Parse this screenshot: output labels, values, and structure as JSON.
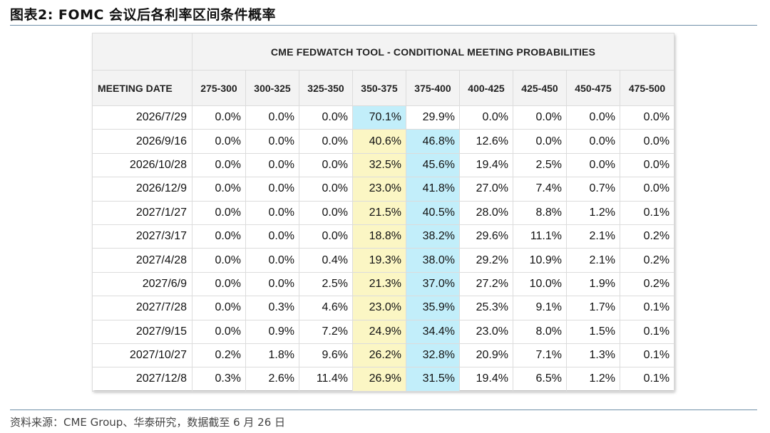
{
  "figure_title": "图表2:  FOMC 会议后各利率区间条件概率",
  "source_note": "资料来源：CME Group、华泰研究，数据截至 6 月 26 日",
  "table": {
    "title": "CME FEDWATCH TOOL - CONDITIONAL MEETING PROBABILITIES",
    "date_header": "MEETING DATE",
    "columns": [
      "275-300",
      "300-325",
      "325-350",
      "350-375",
      "375-400",
      "400-425",
      "425-450",
      "450-475",
      "475-500"
    ],
    "highlight_colors": {
      "yellow": "#fbf6c4",
      "cyan": "#c2eefa"
    },
    "rows": [
      {
        "date": "2026/7/29",
        "values": [
          "0.0%",
          "0.0%",
          "0.0%",
          "70.1%",
          "29.9%",
          "0.0%",
          "0.0%",
          "0.0%",
          "0.0%"
        ],
        "highlight": [
          null,
          null,
          null,
          "cyan",
          null,
          null,
          null,
          null,
          null
        ]
      },
      {
        "date": "2026/9/16",
        "values": [
          "0.0%",
          "0.0%",
          "0.0%",
          "40.6%",
          "46.8%",
          "12.6%",
          "0.0%",
          "0.0%",
          "0.0%"
        ],
        "highlight": [
          null,
          null,
          null,
          "yellow",
          "cyan",
          null,
          null,
          null,
          null
        ]
      },
      {
        "date": "2026/10/28",
        "values": [
          "0.0%",
          "0.0%",
          "0.0%",
          "32.5%",
          "45.6%",
          "19.4%",
          "2.5%",
          "0.0%",
          "0.0%"
        ],
        "highlight": [
          null,
          null,
          null,
          "yellow",
          "cyan",
          null,
          null,
          null,
          null
        ]
      },
      {
        "date": "2026/12/9",
        "values": [
          "0.0%",
          "0.0%",
          "0.0%",
          "23.0%",
          "41.8%",
          "27.0%",
          "7.4%",
          "0.7%",
          "0.0%"
        ],
        "highlight": [
          null,
          null,
          null,
          "yellow",
          "cyan",
          null,
          null,
          null,
          null
        ]
      },
      {
        "date": "2027/1/27",
        "values": [
          "0.0%",
          "0.0%",
          "0.0%",
          "21.5%",
          "40.5%",
          "28.0%",
          "8.8%",
          "1.2%",
          "0.1%"
        ],
        "highlight": [
          null,
          null,
          null,
          "yellow",
          "cyan",
          null,
          null,
          null,
          null
        ]
      },
      {
        "date": "2027/3/17",
        "values": [
          "0.0%",
          "0.0%",
          "0.0%",
          "18.8%",
          "38.2%",
          "29.6%",
          "11.1%",
          "2.1%",
          "0.2%"
        ],
        "highlight": [
          null,
          null,
          null,
          "yellow",
          "cyan",
          null,
          null,
          null,
          null
        ]
      },
      {
        "date": "2027/4/28",
        "values": [
          "0.0%",
          "0.0%",
          "0.4%",
          "19.3%",
          "38.0%",
          "29.2%",
          "10.9%",
          "2.1%",
          "0.2%"
        ],
        "highlight": [
          null,
          null,
          null,
          "yellow",
          "cyan",
          null,
          null,
          null,
          null
        ]
      },
      {
        "date": "2027/6/9",
        "values": [
          "0.0%",
          "0.0%",
          "2.5%",
          "21.3%",
          "37.0%",
          "27.2%",
          "10.0%",
          "1.9%",
          "0.2%"
        ],
        "highlight": [
          null,
          null,
          null,
          "yellow",
          "cyan",
          null,
          null,
          null,
          null
        ]
      },
      {
        "date": "2027/7/28",
        "values": [
          "0.0%",
          "0.3%",
          "4.6%",
          "23.0%",
          "35.9%",
          "25.3%",
          "9.1%",
          "1.7%",
          "0.1%"
        ],
        "highlight": [
          null,
          null,
          null,
          "yellow",
          "cyan",
          null,
          null,
          null,
          null
        ]
      },
      {
        "date": "2027/9/15",
        "values": [
          "0.0%",
          "0.9%",
          "7.2%",
          "24.9%",
          "34.4%",
          "23.0%",
          "8.0%",
          "1.5%",
          "0.1%"
        ],
        "highlight": [
          null,
          null,
          null,
          "yellow",
          "cyan",
          null,
          null,
          null,
          null
        ]
      },
      {
        "date": "2027/10/27",
        "values": [
          "0.2%",
          "1.8%",
          "9.6%",
          "26.2%",
          "32.8%",
          "20.9%",
          "7.1%",
          "1.3%",
          "0.1%"
        ],
        "highlight": [
          null,
          null,
          null,
          "yellow",
          "cyan",
          null,
          null,
          null,
          null
        ]
      },
      {
        "date": "2027/12/8",
        "values": [
          "0.3%",
          "2.6%",
          "11.4%",
          "26.9%",
          "31.5%",
          "19.4%",
          "6.5%",
          "1.2%",
          "0.1%"
        ],
        "highlight": [
          null,
          null,
          null,
          "yellow",
          "cyan",
          null,
          null,
          null,
          null
        ]
      }
    ]
  }
}
